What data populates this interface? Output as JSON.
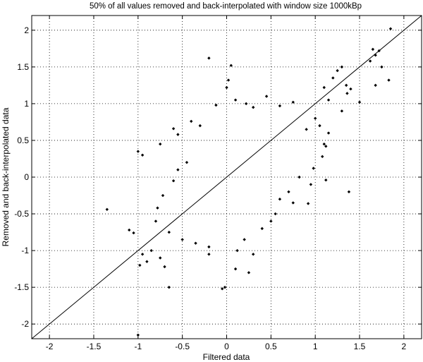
{
  "chart_data": {
    "type": "scatter",
    "title": "50% of all values removed and back-interpolated with window size 1000kBp",
    "xlabel": "Filtered data",
    "ylabel": "Removed and back-interpolated data",
    "xlim": [
      -2.2,
      2.2
    ],
    "ylim": [
      -2.2,
      2.2
    ],
    "x_ticks": [
      -2,
      -1.5,
      -1,
      -0.5,
      0,
      0.5,
      1,
      1.5,
      2
    ],
    "x_tick_labels": [
      "-2",
      "-1.5",
      "-1",
      "-0.5",
      "0",
      "0.5",
      "1",
      "1.5",
      "2"
    ],
    "y_ticks": [
      2,
      1.5,
      1,
      0.5,
      0,
      -0.5,
      -1,
      -1.5,
      -2
    ],
    "y_tick_labels": [
      "2",
      "1.5",
      "1",
      "0.5",
      "0",
      "-0.5",
      "-1",
      "-1.5",
      "-2"
    ],
    "grid": true,
    "grid_style": "dotted",
    "marker_color": "#000000",
    "reference_line": {
      "x": [
        -2.2,
        2.2
      ],
      "y": [
        -2.2,
        2.2
      ]
    },
    "series": [
      {
        "points": [
          [
            1.85,
            2.02
          ],
          [
            1.65,
            1.74
          ],
          [
            1.72,
            1.72
          ],
          [
            1.68,
            1.66
          ],
          [
            1.75,
            1.5
          ],
          [
            1.62,
            1.58
          ],
          [
            1.83,
            1.32
          ],
          [
            1.68,
            1.25
          ],
          [
            1.3,
            1.5
          ],
          [
            1.25,
            1.45
          ],
          [
            1.2,
            1.35
          ],
          [
            1.35,
            1.25
          ],
          [
            1.4,
            1.2
          ],
          [
            1.1,
            1.22
          ],
          [
            1.15,
            1.05
          ],
          [
            1.36,
            1.14
          ],
          [
            1.3,
            0.9
          ],
          [
            1.5,
            1.02
          ],
          [
            1.38,
            -0.2
          ],
          [
            1.12,
            -0.04
          ],
          [
            0.95,
            -0.1
          ],
          [
            0.92,
            -0.36
          ],
          [
            1.08,
            0.28
          ],
          [
            0.98,
            0.12
          ],
          [
            1.1,
            0.45
          ],
          [
            1.15,
            0.6
          ],
          [
            1.05,
            0.7
          ],
          [
            1.12,
            0.42
          ],
          [
            1.0,
            0.8
          ],
          [
            0.9,
            0.65
          ],
          [
            0.05,
            1.52
          ],
          [
            -0.2,
            1.62
          ],
          [
            0.02,
            1.32
          ],
          [
            0.0,
            1.22
          ],
          [
            0.22,
            1.0
          ],
          [
            0.1,
            1.05
          ],
          [
            0.3,
            0.95
          ],
          [
            -0.12,
            0.98
          ],
          [
            0.45,
            1.1
          ],
          [
            -0.4,
            0.76
          ],
          [
            -0.6,
            0.66
          ],
          [
            -0.75,
            0.45
          ],
          [
            -1.0,
            0.35
          ],
          [
            -0.95,
            0.3
          ],
          [
            -0.55,
            0.58
          ],
          [
            -0.3,
            0.7
          ],
          [
            0.6,
            0.97
          ],
          [
            0.75,
            1.02
          ],
          [
            -1.35,
            -0.44
          ],
          [
            -1.1,
            -0.72
          ],
          [
            -1.05,
            -0.76
          ],
          [
            -0.95,
            -1.05
          ],
          [
            -0.9,
            -1.15
          ],
          [
            -0.98,
            -1.2
          ],
          [
            -0.85,
            -1.0
          ],
          [
            -0.75,
            -1.1
          ],
          [
            -0.7,
            -1.22
          ],
          [
            -0.65,
            -1.5
          ],
          [
            -1.0,
            -2.15
          ],
          [
            -0.05,
            -1.52
          ],
          [
            -0.02,
            -1.5
          ],
          [
            0.1,
            -1.25
          ],
          [
            0.25,
            -1.3
          ],
          [
            0.3,
            -1.05
          ],
          [
            0.12,
            -1.0
          ],
          [
            -0.2,
            -1.05
          ],
          [
            0.2,
            -0.85
          ],
          [
            0.4,
            -0.7
          ],
          [
            0.5,
            -0.6
          ],
          [
            0.55,
            -0.5
          ],
          [
            0.6,
            -0.3
          ],
          [
            0.7,
            -0.2
          ],
          [
            0.75,
            -0.35
          ],
          [
            0.82,
            0.0
          ],
          [
            -0.8,
            -0.6
          ],
          [
            -0.78,
            -0.42
          ],
          [
            -0.72,
            -0.25
          ],
          [
            -0.6,
            -0.05
          ],
          [
            -0.55,
            0.1
          ],
          [
            -0.45,
            0.2
          ],
          [
            -0.65,
            -0.75
          ],
          [
            -0.5,
            -0.85
          ],
          [
            -0.35,
            -0.9
          ],
          [
            -0.2,
            -0.95
          ]
        ]
      }
    ]
  }
}
